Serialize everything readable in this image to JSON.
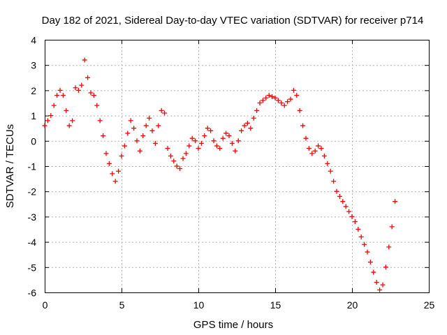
{
  "chart_data": {
    "type": "scatter",
    "title": "Day 182 of 2021, Sidereal Day-to-day VTEC variation (SDTVAR) for receiver p714",
    "xlabel": "GPS time / hours",
    "ylabel": "SDTVAR / TECUs",
    "xlim": [
      0,
      25
    ],
    "ylim": [
      -6,
      4
    ],
    "xticks": [
      "0",
      "5",
      "10",
      "15",
      "20",
      "25"
    ],
    "yticks": [
      "4",
      "3",
      "2",
      "1",
      "0",
      "-1",
      "-2",
      "-3",
      "-4",
      "-5",
      "-6"
    ],
    "grid": true,
    "marker": "+",
    "series": [
      {
        "name": "SDTVAR",
        "color": "#ff0000",
        "x": [
          0.0,
          0.2,
          0.4,
          0.6,
          0.8,
          1.0,
          1.2,
          1.4,
          1.6,
          1.8,
          2.0,
          2.2,
          2.4,
          2.6,
          2.8,
          3.0,
          3.2,
          3.4,
          3.6,
          3.8,
          4.0,
          4.2,
          4.4,
          4.6,
          4.8,
          5.0,
          5.2,
          5.4,
          5.6,
          5.8,
          6.0,
          6.2,
          6.4,
          6.6,
          6.8,
          7.0,
          7.2,
          7.4,
          7.6,
          7.8,
          8.0,
          8.2,
          8.4,
          8.6,
          8.8,
          9.0,
          9.2,
          9.4,
          9.6,
          9.8,
          10.0,
          10.2,
          10.4,
          10.6,
          10.8,
          11.0,
          11.2,
          11.4,
          11.6,
          11.8,
          12.0,
          12.2,
          12.4,
          12.6,
          12.8,
          13.0,
          13.2,
          13.4,
          13.6,
          13.8,
          14.0,
          14.2,
          14.4,
          14.6,
          14.8,
          15.0,
          15.2,
          15.4,
          15.6,
          15.8,
          16.0,
          16.2,
          16.4,
          16.6,
          16.8,
          17.0,
          17.2,
          17.4,
          17.6,
          17.8,
          18.0,
          18.2,
          18.4,
          18.6,
          18.8,
          19.0,
          19.2,
          19.4,
          19.6,
          19.8,
          20.0,
          20.2,
          20.4,
          20.6,
          20.8,
          21.0,
          21.2,
          21.4,
          21.6,
          21.8,
          22.0,
          22.2,
          22.4,
          22.6,
          22.8
        ],
        "y": [
          0.6,
          0.8,
          1.0,
          1.4,
          1.8,
          2.0,
          1.8,
          1.2,
          0.6,
          0.8,
          2.1,
          2.0,
          2.2,
          3.2,
          2.5,
          1.9,
          1.8,
          1.4,
          0.8,
          0.2,
          -0.5,
          -0.9,
          -1.3,
          -1.6,
          -1.2,
          -0.6,
          -0.2,
          0.3,
          0.8,
          0.5,
          0.0,
          -0.4,
          0.2,
          0.6,
          0.9,
          0.4,
          -0.1,
          0.6,
          1.2,
          1.1,
          -0.3,
          -0.6,
          -0.8,
          -1.0,
          -1.1,
          -0.7,
          -0.5,
          -0.2,
          0.1,
          0.0,
          -0.3,
          -0.1,
          0.2,
          0.5,
          0.4,
          0.0,
          -0.2,
          -0.3,
          0.1,
          0.3,
          0.2,
          -0.1,
          -0.4,
          0.0,
          0.4,
          0.6,
          0.7,
          0.5,
          0.9,
          1.2,
          1.5,
          1.6,
          1.7,
          1.8,
          1.75,
          1.7,
          1.6,
          1.5,
          1.4,
          1.55,
          1.65,
          2.0,
          1.8,
          1.2,
          0.6,
          0.1,
          -0.3,
          -0.5,
          -0.4,
          -0.2,
          -0.3,
          -0.6,
          -0.9,
          -1.2,
          -1.6,
          -2.0,
          -2.2,
          -2.4,
          -2.6,
          -2.8,
          -3.0,
          -3.2,
          -3.5,
          -3.8,
          -4.1,
          -4.4,
          -4.8,
          -5.2,
          -5.6,
          -5.9,
          -5.7,
          -5.0,
          -4.2,
          -3.4,
          -2.4
        ]
      }
    ]
  }
}
